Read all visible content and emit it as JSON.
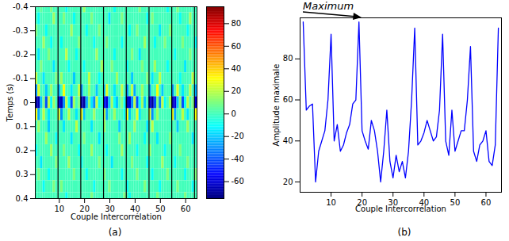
{
  "chart_data": [
    {
      "type": "heatmap",
      "caption": "(a)",
      "x_label": "Couple Intercorrélation",
      "y_label": "Temps (s)",
      "xlim": [
        0.5,
        64.5
      ],
      "xticks": [
        10,
        20,
        30,
        40,
        50,
        60
      ],
      "ylim": [
        -0.4,
        0.4
      ],
      "yticks": [
        -0.4,
        -0.3,
        -0.2,
        -0.1,
        0,
        0.1,
        0.2,
        0.3,
        0.4
      ],
      "boundaries": [
        9.5,
        18.5,
        27.5,
        36.5,
        45.5,
        54.5,
        63.5
      ],
      "colorbar_lim": [
        -75,
        95
      ],
      "colorbar_ticks": [
        -60,
        -40,
        -20,
        0,
        20,
        40,
        60,
        80
      ],
      "times": [
        -0.4,
        -0.35,
        -0.3,
        -0.25,
        -0.2,
        -0.15,
        -0.1,
        -0.05,
        0,
        0.05,
        0.1,
        0.15,
        0.2,
        0.25,
        0.3,
        0.35,
        0.4
      ],
      "cells": [
        [
          0,
          0,
          5,
          0,
          0,
          0,
          10,
          0,
          0,
          0,
          0,
          0,
          -10,
          0,
          0,
          0,
          0,
          0,
          0,
          15,
          0,
          0,
          0,
          0,
          0,
          0,
          0,
          0,
          0,
          0,
          0,
          -10,
          0,
          0,
          0,
          0,
          0,
          0,
          0,
          0,
          0,
          10,
          0,
          0,
          0,
          0,
          0,
          0,
          0,
          0,
          0,
          0,
          -10,
          0,
          0,
          0,
          10,
          0,
          0,
          0,
          0,
          0,
          0,
          0
        ],
        [
          0,
          -10,
          0,
          0,
          0,
          0,
          0,
          15,
          0,
          0,
          0,
          10,
          0,
          0,
          0,
          -10,
          0,
          0,
          0,
          0,
          0,
          0,
          10,
          0,
          0,
          0,
          0,
          0,
          0,
          -15,
          0,
          0,
          0,
          0,
          10,
          0,
          0,
          0,
          0,
          0,
          0,
          0,
          0,
          0,
          -10,
          0,
          10,
          0,
          0,
          0,
          0,
          0,
          0,
          0,
          0,
          0,
          0,
          -10,
          0,
          0,
          0,
          15,
          0,
          0
        ],
        [
          10,
          0,
          0,
          0,
          -10,
          0,
          0,
          0,
          0,
          0,
          0,
          0,
          0,
          0,
          15,
          0,
          0,
          0,
          0,
          0,
          -10,
          0,
          0,
          0,
          0,
          10,
          0,
          0,
          0,
          0,
          0,
          0,
          0,
          0,
          0,
          0,
          0,
          -10,
          0,
          0,
          10,
          0,
          0,
          0,
          0,
          0,
          0,
          0,
          0,
          -15,
          0,
          0,
          0,
          10,
          0,
          0,
          0,
          0,
          0,
          0,
          -10,
          0,
          0,
          0
        ],
        [
          0,
          0,
          0,
          15,
          0,
          0,
          -10,
          0,
          0,
          0,
          -10,
          0,
          0,
          0,
          0,
          0,
          0,
          10,
          0,
          0,
          0,
          0,
          0,
          -10,
          0,
          0,
          0,
          0,
          10,
          0,
          0,
          0,
          0,
          0,
          -10,
          0,
          0,
          0,
          0,
          0,
          0,
          0,
          0,
          15,
          0,
          0,
          0,
          -10,
          0,
          0,
          0,
          10,
          0,
          0,
          0,
          0,
          0,
          0,
          10,
          0,
          0,
          0,
          0,
          -10
        ],
        [
          0,
          -15,
          0,
          0,
          0,
          10,
          0,
          0,
          0,
          0,
          0,
          0,
          20,
          0,
          0,
          0,
          -10,
          0,
          0,
          0,
          0,
          0,
          0,
          0,
          15,
          0,
          0,
          0,
          0,
          0,
          0,
          -10,
          0,
          0,
          0,
          0,
          0,
          0,
          10,
          0,
          0,
          -15,
          0,
          0,
          0,
          0,
          0,
          0,
          0,
          0,
          0,
          0,
          0,
          0,
          0,
          -10,
          0,
          0,
          0,
          0,
          0,
          10,
          0,
          0
        ],
        [
          0,
          0,
          10,
          0,
          0,
          0,
          0,
          -15,
          0,
          0,
          0,
          0,
          0,
          -10,
          0,
          0,
          0,
          0,
          0,
          -10,
          0,
          0,
          0,
          0,
          0,
          0,
          15,
          0,
          0,
          0,
          10,
          0,
          0,
          0,
          0,
          0,
          -10,
          0,
          0,
          0,
          0,
          0,
          10,
          0,
          0,
          0,
          0,
          15,
          0,
          0,
          0,
          0,
          -10,
          0,
          0,
          0,
          0,
          0,
          0,
          -15,
          0,
          0,
          0,
          0
        ],
        [
          20,
          0,
          0,
          -15,
          0,
          0,
          0,
          0,
          10,
          0,
          15,
          0,
          0,
          0,
          0,
          -20,
          0,
          0,
          0,
          0,
          0,
          20,
          0,
          0,
          0,
          -10,
          0,
          0,
          0,
          0,
          0,
          0,
          15,
          0,
          0,
          0,
          0,
          0,
          -20,
          0,
          0,
          0,
          0,
          0,
          10,
          0,
          -15,
          0,
          0,
          20,
          0,
          0,
          0,
          0,
          0,
          0,
          0,
          -10,
          0,
          0,
          0,
          0,
          20,
          0
        ],
        [
          -30,
          25,
          0,
          0,
          -20,
          0,
          15,
          0,
          0,
          -25,
          0,
          30,
          0,
          0,
          -15,
          0,
          0,
          20,
          -30,
          0,
          0,
          15,
          0,
          0,
          -20,
          0,
          0,
          -20,
          25,
          0,
          0,
          -15,
          0,
          0,
          20,
          0,
          -30,
          0,
          20,
          -25,
          0,
          0,
          15,
          0,
          0,
          -25,
          0,
          0,
          30,
          0,
          -20,
          0,
          0,
          0,
          -30,
          0,
          25,
          0,
          -15,
          0,
          0,
          20,
          0,
          -25
        ],
        [
          -70,
          -65,
          -20,
          10,
          -40,
          20,
          -10,
          15,
          0,
          -60,
          -65,
          -30,
          20,
          -10,
          -40,
          15,
          0,
          10,
          -65,
          -70,
          -25,
          10,
          -15,
          -30,
          20,
          -10,
          0,
          -50,
          -60,
          -20,
          15,
          -10,
          -20,
          0,
          10,
          -10,
          -65,
          -60,
          -30,
          20,
          -40,
          -10,
          15,
          -20,
          0,
          -60,
          -70,
          -40,
          10,
          -30,
          20,
          -10,
          0,
          15,
          -65,
          -60,
          -20,
          10,
          -40,
          -10,
          20,
          0,
          10,
          -60
        ],
        [
          30,
          -25,
          0,
          20,
          0,
          -15,
          0,
          0,
          0,
          25,
          -30,
          0,
          0,
          20,
          0,
          0,
          -15,
          0,
          30,
          -20,
          0,
          0,
          0,
          15,
          0,
          0,
          0,
          20,
          -25,
          0,
          0,
          15,
          0,
          0,
          0,
          -10,
          30,
          -20,
          0,
          0,
          25,
          -15,
          0,
          0,
          0,
          25,
          -30,
          0,
          15,
          0,
          0,
          0,
          0,
          0,
          30,
          -25,
          0,
          0,
          20,
          0,
          -15,
          0,
          0,
          30
        ],
        [
          0,
          15,
          0,
          0,
          0,
          -20,
          0,
          0,
          0,
          0,
          0,
          -15,
          0,
          0,
          0,
          0,
          20,
          0,
          0,
          0,
          0,
          0,
          -15,
          0,
          0,
          0,
          0,
          15,
          0,
          0,
          0,
          0,
          0,
          -20,
          0,
          0,
          0,
          0,
          0,
          15,
          0,
          0,
          0,
          0,
          -15,
          0,
          20,
          0,
          0,
          0,
          0,
          0,
          0,
          0,
          0,
          0,
          -20,
          0,
          0,
          0,
          15,
          0,
          0,
          0
        ],
        [
          0,
          0,
          0,
          0,
          15,
          0,
          0,
          0,
          -10,
          0,
          0,
          0,
          0,
          0,
          -15,
          0,
          0,
          0,
          0,
          10,
          0,
          0,
          0,
          0,
          0,
          -15,
          0,
          0,
          0,
          0,
          0,
          0,
          0,
          10,
          0,
          0,
          0,
          15,
          0,
          0,
          0,
          0,
          0,
          -10,
          0,
          0,
          0,
          0,
          -15,
          0,
          0,
          0,
          0,
          10,
          0,
          0,
          0,
          0,
          0,
          0,
          0,
          0,
          -15,
          0
        ],
        [
          -10,
          0,
          0,
          0,
          0,
          0,
          15,
          0,
          0,
          0,
          0,
          10,
          0,
          0,
          0,
          0,
          0,
          -10,
          0,
          0,
          0,
          0,
          15,
          0,
          0,
          0,
          0,
          0,
          -10,
          0,
          0,
          0,
          0,
          0,
          15,
          0,
          0,
          0,
          0,
          0,
          -10,
          0,
          0,
          0,
          0,
          15,
          0,
          0,
          0,
          0,
          0,
          -10,
          0,
          0,
          0,
          0,
          0,
          10,
          0,
          0,
          0,
          0,
          0,
          0
        ],
        [
          0,
          0,
          -15,
          0,
          0,
          0,
          0,
          0,
          10,
          0,
          0,
          0,
          0,
          15,
          0,
          0,
          0,
          0,
          -10,
          0,
          0,
          0,
          0,
          0,
          0,
          10,
          0,
          0,
          0,
          0,
          -15,
          0,
          0,
          0,
          0,
          0,
          0,
          0,
          10,
          0,
          0,
          0,
          0,
          0,
          -10,
          0,
          0,
          0,
          0,
          0,
          15,
          0,
          0,
          0,
          0,
          -10,
          0,
          0,
          0,
          0,
          10,
          0,
          0,
          0
        ],
        [
          0,
          10,
          0,
          0,
          0,
          -10,
          0,
          0,
          0,
          0,
          0,
          0,
          0,
          0,
          0,
          10,
          0,
          0,
          0,
          0,
          -10,
          0,
          0,
          0,
          0,
          0,
          0,
          10,
          0,
          0,
          0,
          0,
          0,
          0,
          -10,
          0,
          0,
          0,
          0,
          0,
          10,
          0,
          0,
          0,
          0,
          0,
          -10,
          0,
          0,
          0,
          0,
          0,
          10,
          0,
          0,
          0,
          0,
          0,
          0,
          -10,
          0,
          0,
          0,
          10
        ],
        [
          0,
          0,
          0,
          -10,
          0,
          0,
          0,
          10,
          0,
          0,
          10,
          0,
          0,
          0,
          0,
          0,
          0,
          0,
          0,
          0,
          0,
          0,
          0,
          -10,
          0,
          0,
          0,
          0,
          0,
          10,
          0,
          0,
          0,
          0,
          0,
          0,
          -10,
          0,
          0,
          0,
          0,
          0,
          0,
          10,
          0,
          0,
          0,
          0,
          0,
          -10,
          0,
          0,
          0,
          0,
          0,
          0,
          10,
          0,
          0,
          0,
          0,
          0,
          -10,
          0
        ],
        [
          0,
          0,
          0,
          0,
          0,
          0,
          0,
          0,
          0,
          0,
          0,
          0,
          -10,
          0,
          0,
          0,
          0,
          0,
          0,
          0,
          0,
          0,
          10,
          0,
          0,
          0,
          0,
          0,
          0,
          0,
          0,
          0,
          0,
          0,
          0,
          10,
          0,
          -10,
          0,
          0,
          0,
          0,
          0,
          0,
          0,
          0,
          0,
          0,
          10,
          0,
          0,
          0,
          0,
          0,
          0,
          0,
          0,
          0,
          0,
          10,
          0,
          0,
          0,
          0
        ]
      ]
    },
    {
      "type": "line",
      "caption": "(b)",
      "annotation": "Maximum",
      "x_label": "Couple Intercorrélation",
      "y_label": "Amplitude maximale",
      "xlim": [
        0,
        65
      ],
      "xticks": [
        10,
        20,
        30,
        40,
        50,
        60
      ],
      "ylim": [
        15,
        100
      ],
      "yticks": [
        20,
        40,
        60,
        80
      ],
      "color": "#0000ff",
      "x": [
        1,
        2,
        3,
        4,
        5,
        6,
        7,
        8,
        9,
        10,
        11,
        12,
        13,
        14,
        15,
        16,
        17,
        18,
        19,
        20,
        21,
        22,
        23,
        24,
        25,
        26,
        27,
        28,
        29,
        30,
        31,
        32,
        33,
        34,
        35,
        36,
        37,
        38,
        39,
        40,
        41,
        42,
        43,
        44,
        45,
        46,
        47,
        48,
        49,
        50,
        51,
        52,
        53,
        54,
        55,
        56,
        57,
        58,
        59,
        60,
        61,
        62,
        63,
        64
      ],
      "values": [
        98,
        55,
        57,
        58,
        20,
        35,
        40,
        45,
        60,
        92,
        40,
        48,
        35,
        38,
        44,
        48,
        58,
        60,
        98,
        45,
        40,
        36,
        50,
        45,
        35,
        20,
        35,
        55,
        30,
        22,
        33,
        25,
        30,
        22,
        35,
        60,
        95,
        38,
        40,
        44,
        50,
        45,
        40,
        42,
        55,
        92,
        40,
        33,
        55,
        35,
        40,
        45,
        45,
        60,
        86,
        35,
        30,
        38,
        40,
        45,
        30,
        28,
        38,
        95
      ]
    }
  ]
}
